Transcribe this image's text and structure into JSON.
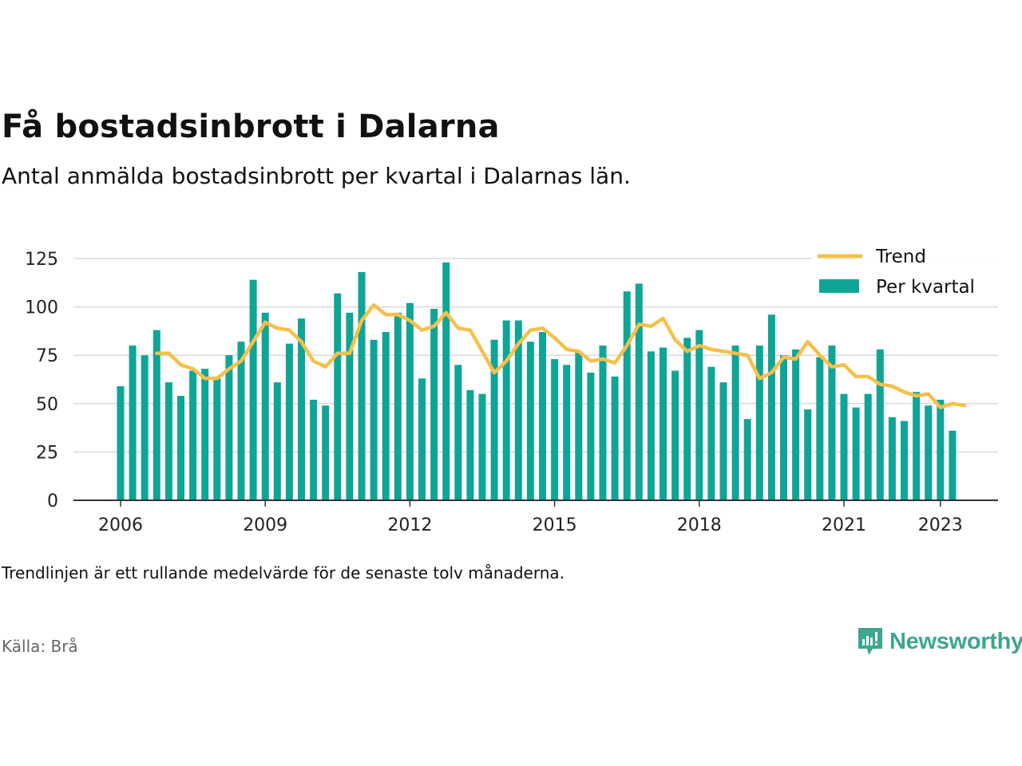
{
  "title": "Få bostadsinbrott i Dalarna",
  "subtitle": "Antal anmälda bostadsinbrott per kvartal i Dalarnas län.",
  "note": "Trendlinjen är ett rullande medelvärde för de senaste tolv månaderna.",
  "source": "Källa: Brå",
  "brand": "Newsworthy",
  "colors": {
    "bars": "#0ea596",
    "trend": "#f5c04a",
    "brand": "#3da68f"
  },
  "chart_data": {
    "type": "bar",
    "ylim": [
      0,
      125
    ],
    "yticks": [
      0,
      25,
      50,
      75,
      100,
      125
    ],
    "xticks": [
      "2006",
      "2009",
      "2012",
      "2015",
      "2018",
      "2021",
      "2023"
    ],
    "x_start": "2006 Q1",
    "grid": true,
    "legend_position": "top-right",
    "series": [
      {
        "name": "Per kvartal",
        "type": "bar",
        "values": [
          59,
          80,
          75,
          88,
          61,
          54,
          67,
          68,
          63,
          75,
          82,
          114,
          97,
          61,
          81,
          94,
          52,
          49,
          107,
          97,
          118,
          83,
          87,
          97,
          102,
          63,
          99,
          123,
          70,
          57,
          55,
          83,
          93,
          93,
          82,
          87,
          73,
          70,
          77,
          66,
          80,
          64,
          108,
          112,
          77,
          79,
          67,
          84,
          88,
          69,
          61,
          80,
          42,
          80,
          96,
          75,
          78,
          47,
          74,
          80,
          55,
          48,
          55,
          78,
          43,
          41,
          56,
          49,
          52,
          36
        ]
      },
      {
        "name": "Trend",
        "type": "line",
        "start_index": 3,
        "values": [
          76,
          76,
          70,
          68,
          63,
          63,
          68,
          72,
          82,
          92,
          89,
          88,
          82,
          72,
          69,
          76,
          76,
          93,
          101,
          96,
          96,
          93,
          88,
          90,
          97,
          89,
          88,
          77,
          66,
          72,
          81,
          88,
          89,
          84,
          78,
          77,
          72,
          73,
          71,
          80,
          91,
          90,
          94,
          83,
          77,
          80,
          78,
          77,
          76,
          75,
          63,
          66,
          74,
          73,
          82,
          75,
          69,
          70,
          64,
          64,
          60,
          59,
          56,
          54,
          55,
          48,
          50,
          49
        ]
      }
    ]
  }
}
